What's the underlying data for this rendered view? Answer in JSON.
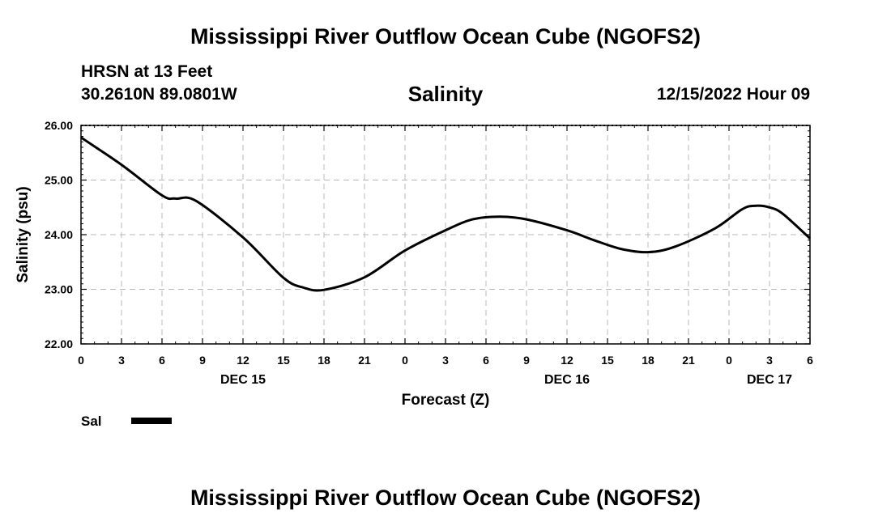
{
  "header": {
    "title": "Mississippi River Outflow Ocean Cube (NGOFS2)",
    "station": "HRSN at 13 Feet",
    "coords": "30.2610N  89.0801W",
    "variable": "Salinity",
    "datetime": "12/15/2022 Hour 09"
  },
  "footer": {
    "title": "Mississippi River Outflow Ocean Cube (NGOFS2)"
  },
  "legend": {
    "label": "Sal",
    "color": "#000000"
  },
  "chart_data": {
    "type": "line",
    "title": "Salinity",
    "xlabel": "Forecast (Z)",
    "ylabel": "Salinity (psu)",
    "xlim": [
      0,
      54
    ],
    "ylim": [
      22.0,
      26.0
    ],
    "grid": true,
    "y_ticks": [
      22.0,
      23.0,
      24.0,
      25.0,
      26.0
    ],
    "y_tick_labels": [
      "22.00",
      "23.00",
      "24.00",
      "25.00",
      "26.00"
    ],
    "x_ticks": [
      0,
      3,
      6,
      9,
      12,
      15,
      18,
      21,
      24,
      27,
      30,
      33,
      36,
      39,
      42,
      45,
      48,
      51,
      54
    ],
    "x_tick_labels": [
      "0",
      "3",
      "6",
      "9",
      "12",
      "15",
      "18",
      "21",
      "0",
      "3",
      "6",
      "9",
      "12",
      "15",
      "18",
      "21",
      "0",
      "3",
      "6"
    ],
    "day_labels": [
      {
        "hour": 12,
        "label": "DEC 15"
      },
      {
        "hour": 36,
        "label": "DEC 16"
      },
      {
        "hour": 51,
        "label": "DEC 17"
      }
    ],
    "series": [
      {
        "name": "Sal",
        "x": [
          0,
          3,
          6,
          7,
          8.5,
          12,
          15,
          16.5,
          18,
          21,
          24,
          27,
          29,
          31,
          33,
          36,
          38,
          40,
          42,
          44,
          47,
          49,
          50,
          51,
          52,
          54
        ],
        "values": [
          25.78,
          25.28,
          24.72,
          24.66,
          24.62,
          23.95,
          23.21,
          23.03,
          22.99,
          23.22,
          23.71,
          24.08,
          24.28,
          24.33,
          24.28,
          24.08,
          23.9,
          23.74,
          23.68,
          23.78,
          24.12,
          24.47,
          24.53,
          24.5,
          24.38,
          23.93
        ]
      }
    ]
  }
}
